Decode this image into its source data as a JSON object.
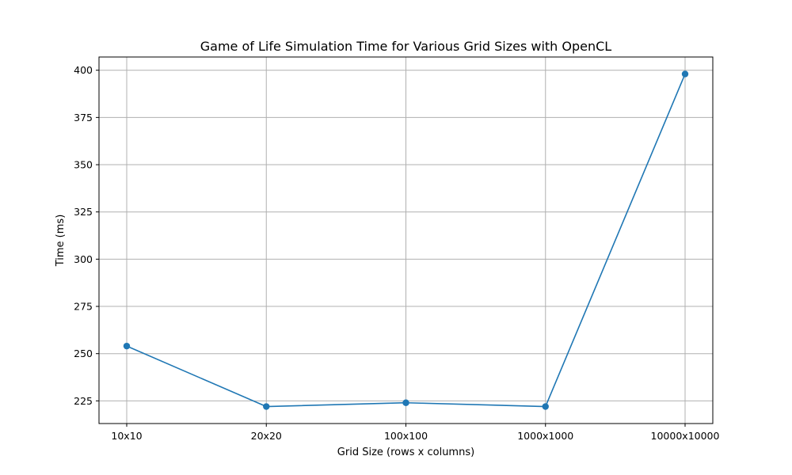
{
  "chart_data": {
    "type": "line",
    "title": "Game of Life Simulation Time for Various Grid Sizes with OpenCL",
    "xlabel": "Grid Size (rows x columns)",
    "ylabel": "Time (ms)",
    "categories": [
      "10x10",
      "20x20",
      "100x100",
      "1000x1000",
      "10000x10000"
    ],
    "series": [
      {
        "values": [
          254,
          222,
          224,
          222,
          398
        ],
        "color": "#1f77b4",
        "marker": "circle"
      }
    ],
    "ylim": [
      213,
      407
    ],
    "yticks": [
      225,
      250,
      275,
      300,
      325,
      350,
      375,
      400
    ],
    "grid": true,
    "legend": "none"
  }
}
